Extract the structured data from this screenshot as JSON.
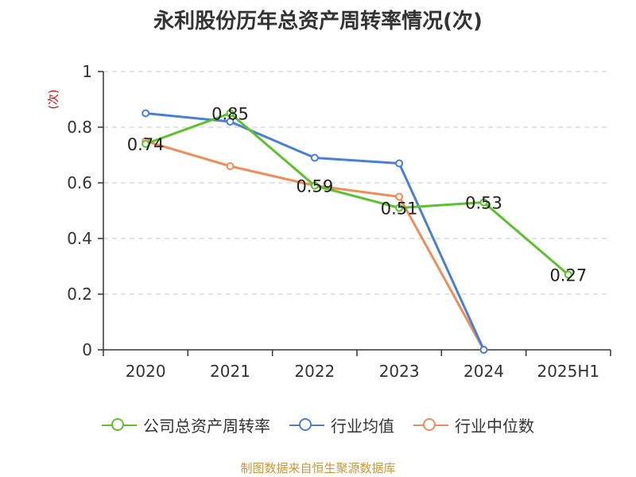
{
  "chart_data": {
    "type": "line",
    "title": "永利股份历年总资产周转率情况(次)",
    "ylabel": "(次)",
    "categories": [
      "2020",
      "2021",
      "2022",
      "2023",
      "2024",
      "2025H1"
    ],
    "ylim": [
      0,
      1
    ],
    "yticks": [
      "0",
      "0.2",
      "0.4",
      "0.6",
      "0.8",
      "1"
    ],
    "grid": true,
    "legend_position": "bottom",
    "series": [
      {
        "name": "公司总资产周转率",
        "color": "#5dc12c",
        "values": [
          0.74,
          0.85,
          0.59,
          0.51,
          0.53,
          0.27
        ],
        "labels": [
          "0.74",
          "0.85",
          "0.59",
          "0.51",
          "0.53",
          "0.27"
        ]
      },
      {
        "name": "行业均值",
        "color": "#4a7fd6",
        "values": [
          0.85,
          0.82,
          0.69,
          0.67,
          0,
          null
        ]
      },
      {
        "name": "行业中位数",
        "color": "#f08c5a",
        "values": [
          0.75,
          0.66,
          0.59,
          0.55,
          0,
          null
        ]
      }
    ]
  },
  "source": "制图数据来自恒生聚源数据库"
}
